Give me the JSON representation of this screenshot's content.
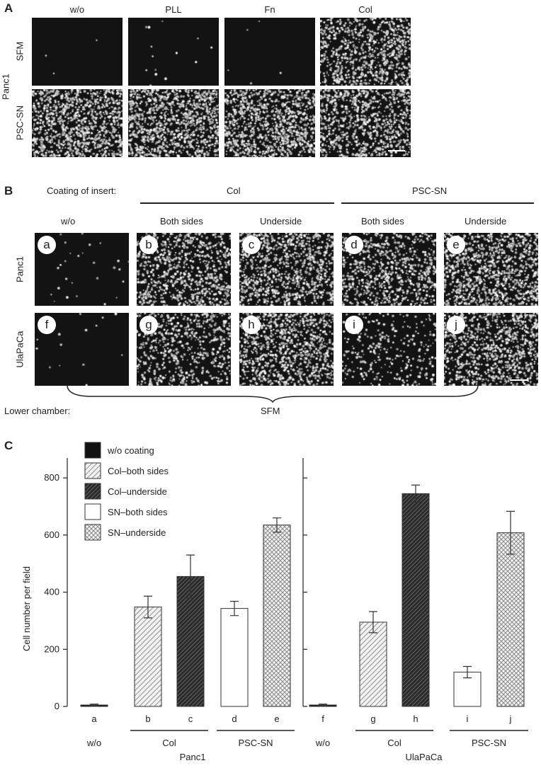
{
  "panel_a": {
    "letter": "A",
    "columns": [
      "w/o",
      "PLL",
      "Fn",
      "Col"
    ],
    "rows": [
      "SFM",
      "PSC-SN"
    ],
    "cell_line": "Panc1",
    "density": [
      [
        0.002,
        0.01,
        0.004,
        0.55
      ],
      [
        0.7,
        0.72,
        0.7,
        0.6
      ]
    ]
  },
  "panel_b": {
    "letter": "B",
    "coating_label": "Coating of insert:",
    "groups": [
      "Col",
      "PSC-SN"
    ],
    "columns": [
      "w/o",
      "Both sides",
      "Underside",
      "Both sides",
      "Underside"
    ],
    "rows": [
      "Panc1",
      "UlaPaCa"
    ],
    "tiles": [
      [
        "a",
        "b",
        "c",
        "d",
        "e"
      ],
      [
        "f",
        "g",
        "h",
        "i",
        "j"
      ]
    ],
    "density": [
      [
        0.02,
        0.5,
        0.6,
        0.48,
        0.62
      ],
      [
        0.01,
        0.38,
        0.6,
        0.2,
        0.55
      ]
    ],
    "lower_label": "Lower chamber:",
    "lower_value": "SFM"
  },
  "chart_data": {
    "type": "bar",
    "panel_letter": "C",
    "ylabel": "Cell number per field",
    "ylim": [
      0,
      850
    ],
    "yticks": [
      0,
      200,
      400,
      600,
      800
    ],
    "legend": {
      "position": "top-left",
      "entries": [
        {
          "label": "w/o coating",
          "pattern": "solid"
        },
        {
          "label": "Col–both sides",
          "pattern": "diag"
        },
        {
          "label": "Col–underside",
          "pattern": "diag-dark"
        },
        {
          "label": "SN–both sides",
          "pattern": "white"
        },
        {
          "label": "SN–underside",
          "pattern": "cross"
        }
      ]
    },
    "groups": [
      {
        "name": "Panc1",
        "categories": [
          "a",
          "b",
          "c",
          "d",
          "e"
        ],
        "values": [
          5,
          348,
          455,
          343,
          635
        ],
        "errors": [
          3,
          38,
          75,
          25,
          25
        ],
        "subgroups": [
          {
            "label": "w/o",
            "span": [
              0,
              0
            ]
          },
          {
            "label": "Col",
            "span": [
              1,
              2
            ]
          },
          {
            "label": "PSC-SN",
            "span": [
              3,
              4
            ]
          }
        ]
      },
      {
        "name": "UlaPaCa",
        "categories": [
          "f",
          "g",
          "h",
          "i",
          "j"
        ],
        "values": [
          5,
          295,
          745,
          120,
          608
        ],
        "errors": [
          3,
          37,
          30,
          20,
          75
        ],
        "subgroups": [
          {
            "label": "w/o",
            "span": [
              0,
              0
            ]
          },
          {
            "label": "Col",
            "span": [
              1,
              2
            ]
          },
          {
            "label": "PSC-SN",
            "span": [
              3,
              4
            ]
          }
        ]
      }
    ],
    "patterns": [
      "solid",
      "diag",
      "diag-dark",
      "white",
      "cross"
    ]
  }
}
